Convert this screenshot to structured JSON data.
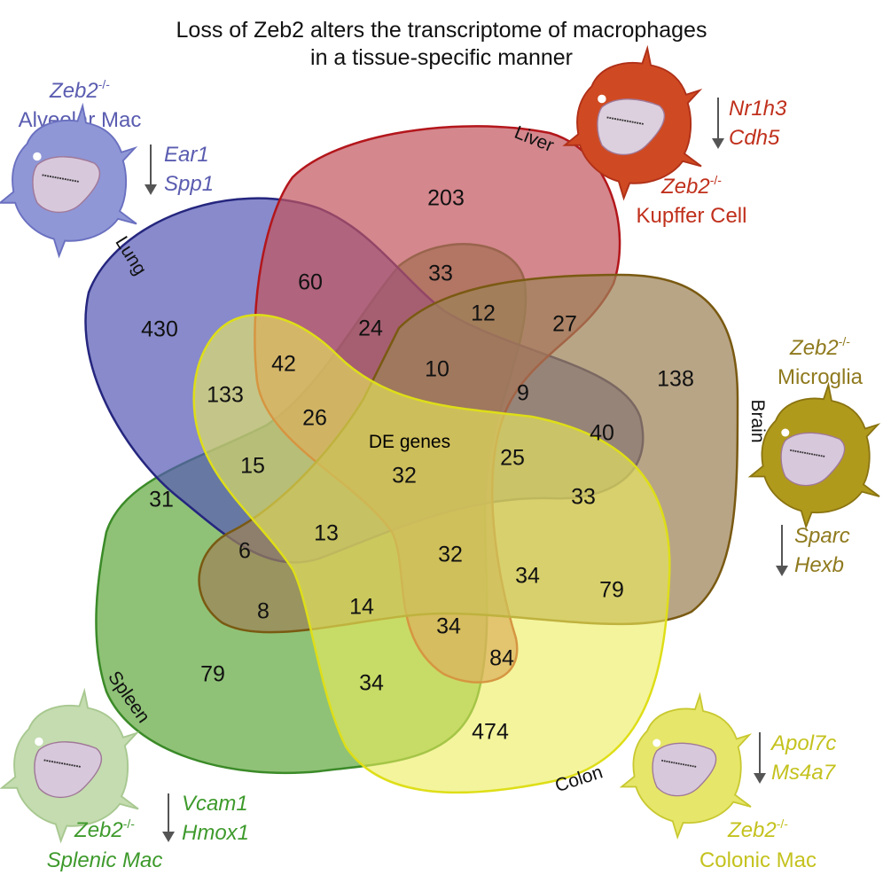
{
  "title": [
    "Loss of Zeb2 alters the transcriptome of macrophages",
    "in a tissue-specific manner"
  ],
  "center_label": "DE genes",
  "sets": {
    "lung": {
      "label": "Lung",
      "color": "#5558b5",
      "stroke": "#25267e"
    },
    "liver": {
      "label": "Liver",
      "color": "#c2545d",
      "stroke": "#b3161b"
    },
    "brain": {
      "label": "Brain",
      "color": "#9c8258",
      "stroke": "#7a5a12"
    },
    "colon": {
      "label": "Colon",
      "color": "#ecec5c",
      "stroke": "#dede18"
    },
    "spleen": {
      "label": "Spleen",
      "color": "#6aae4a",
      "stroke": "#3b8a28"
    }
  },
  "regions": [
    "203",
    "60",
    "33",
    "430",
    "12",
    "27",
    "24",
    "42",
    "10",
    "138",
    "133",
    "9",
    "26",
    "40",
    "15",
    "32",
    "25",
    "31",
    "33",
    "13",
    "6",
    "32",
    "34",
    "79",
    "8",
    "14",
    "34",
    "84",
    "79",
    "34",
    "474"
  ],
  "cells": {
    "lung": {
      "genotype": "Zeb2",
      "sup": "-/-",
      "name": "Alveolar Mac",
      "genes": [
        "Ear1",
        "Spp1"
      ],
      "color": "#5a5cb0",
      "cell_color": "#8f97d6"
    },
    "liver": {
      "genotype": "Zeb2",
      "sup": "-/-",
      "name": "Kupffer Cell",
      "genes": [
        "Nr1h3",
        "Cdh5"
      ],
      "color": "#c0301c",
      "cell_color": "#cf4a22"
    },
    "brain": {
      "genotype": "Zeb2",
      "sup": "-/-",
      "name": "Microglia",
      "genes": [
        "Sparc",
        "Hexb"
      ],
      "color": "#8f7a1e",
      "cell_color": "#b09a1c"
    },
    "colon": {
      "genotype": "Zeb2",
      "sup": "-/-",
      "name": "Colonic Mac",
      "genes": [
        "Apol7c",
        "Ms4a7"
      ],
      "color": "#c4c21e",
      "cell_color": "#e6e66a"
    },
    "spleen": {
      "genotype": "Zeb2",
      "sup": "-/-",
      "name": "Splenic Mac",
      "genes": [
        "Vcam1",
        "Hmox1"
      ],
      "color": "#3e9a2c",
      "cell_color": "#c4dcb0"
    }
  }
}
